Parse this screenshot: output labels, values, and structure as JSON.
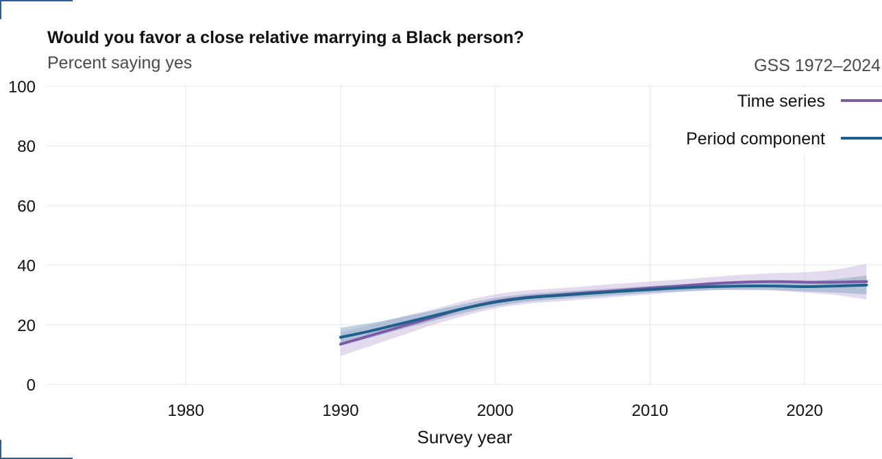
{
  "chart_data": {
    "type": "line",
    "title": "Would you favor a close relative marrying a Black person?",
    "subtitle": "Percent saying yes",
    "caption": "GSS 1972–2024",
    "xlabel": "Survey year",
    "ylabel": "",
    "xlim": [
      1971,
      2025
    ],
    "ylim": [
      0,
      100
    ],
    "x_ticks": [
      1980,
      1990,
      2000,
      2010,
      2020
    ],
    "y_ticks": [
      0,
      20,
      40,
      60,
      80,
      100
    ],
    "grid": true,
    "legend_position": "top-right",
    "series": [
      {
        "name": "Time series",
        "color": "#7b5aa6",
        "band_color": "#c7b6dd",
        "x": [
          1990,
          1992,
          1994,
          1996,
          1998,
          2000,
          2002,
          2004,
          2006,
          2008,
          2010,
          2012,
          2014,
          2016,
          2018,
          2020,
          2022,
          2024
        ],
        "y": [
          13.5,
          16.5,
          19.5,
          22.5,
          25.5,
          27.8,
          29.2,
          30.0,
          30.8,
          31.5,
          32.3,
          33.0,
          33.8,
          34.3,
          34.5,
          34.3,
          34.3,
          34.5
        ],
        "lower": [
          9.5,
          13.0,
          16.5,
          20.0,
          23.0,
          25.5,
          27.0,
          27.8,
          28.6,
          29.4,
          30.2,
          31.0,
          31.6,
          31.6,
          31.5,
          30.8,
          30.0,
          28.5
        ],
        "upper": [
          17.5,
          20.0,
          22.8,
          25.2,
          28.0,
          30.2,
          31.5,
          32.2,
          33.0,
          33.8,
          34.5,
          35.2,
          36.0,
          36.8,
          37.3,
          37.6,
          38.5,
          40.5
        ]
      },
      {
        "name": "Period component",
        "color": "#1f5f8b",
        "band_color": "#7fa3c0",
        "x": [
          1990,
          1992,
          1994,
          1996,
          1998,
          2000,
          2002,
          2004,
          2006,
          2008,
          2010,
          2012,
          2014,
          2016,
          2018,
          2020,
          2022,
          2024
        ],
        "y": [
          15.8,
          18.0,
          20.5,
          23.0,
          25.5,
          27.6,
          29.0,
          29.8,
          30.5,
          31.2,
          31.8,
          32.4,
          32.8,
          33.0,
          33.0,
          32.8,
          33.0,
          33.3
        ],
        "lower": [
          13.0,
          15.8,
          18.6,
          21.3,
          24.0,
          26.2,
          27.7,
          28.6,
          29.3,
          30.0,
          30.7,
          31.2,
          31.6,
          31.8,
          31.6,
          31.2,
          30.8,
          30.2
        ],
        "upper": [
          19.0,
          20.6,
          22.6,
          24.8,
          27.0,
          29.0,
          30.3,
          31.0,
          31.7,
          32.3,
          33.0,
          33.6,
          34.1,
          34.3,
          34.4,
          34.6,
          35.3,
          36.5
        ]
      }
    ]
  }
}
